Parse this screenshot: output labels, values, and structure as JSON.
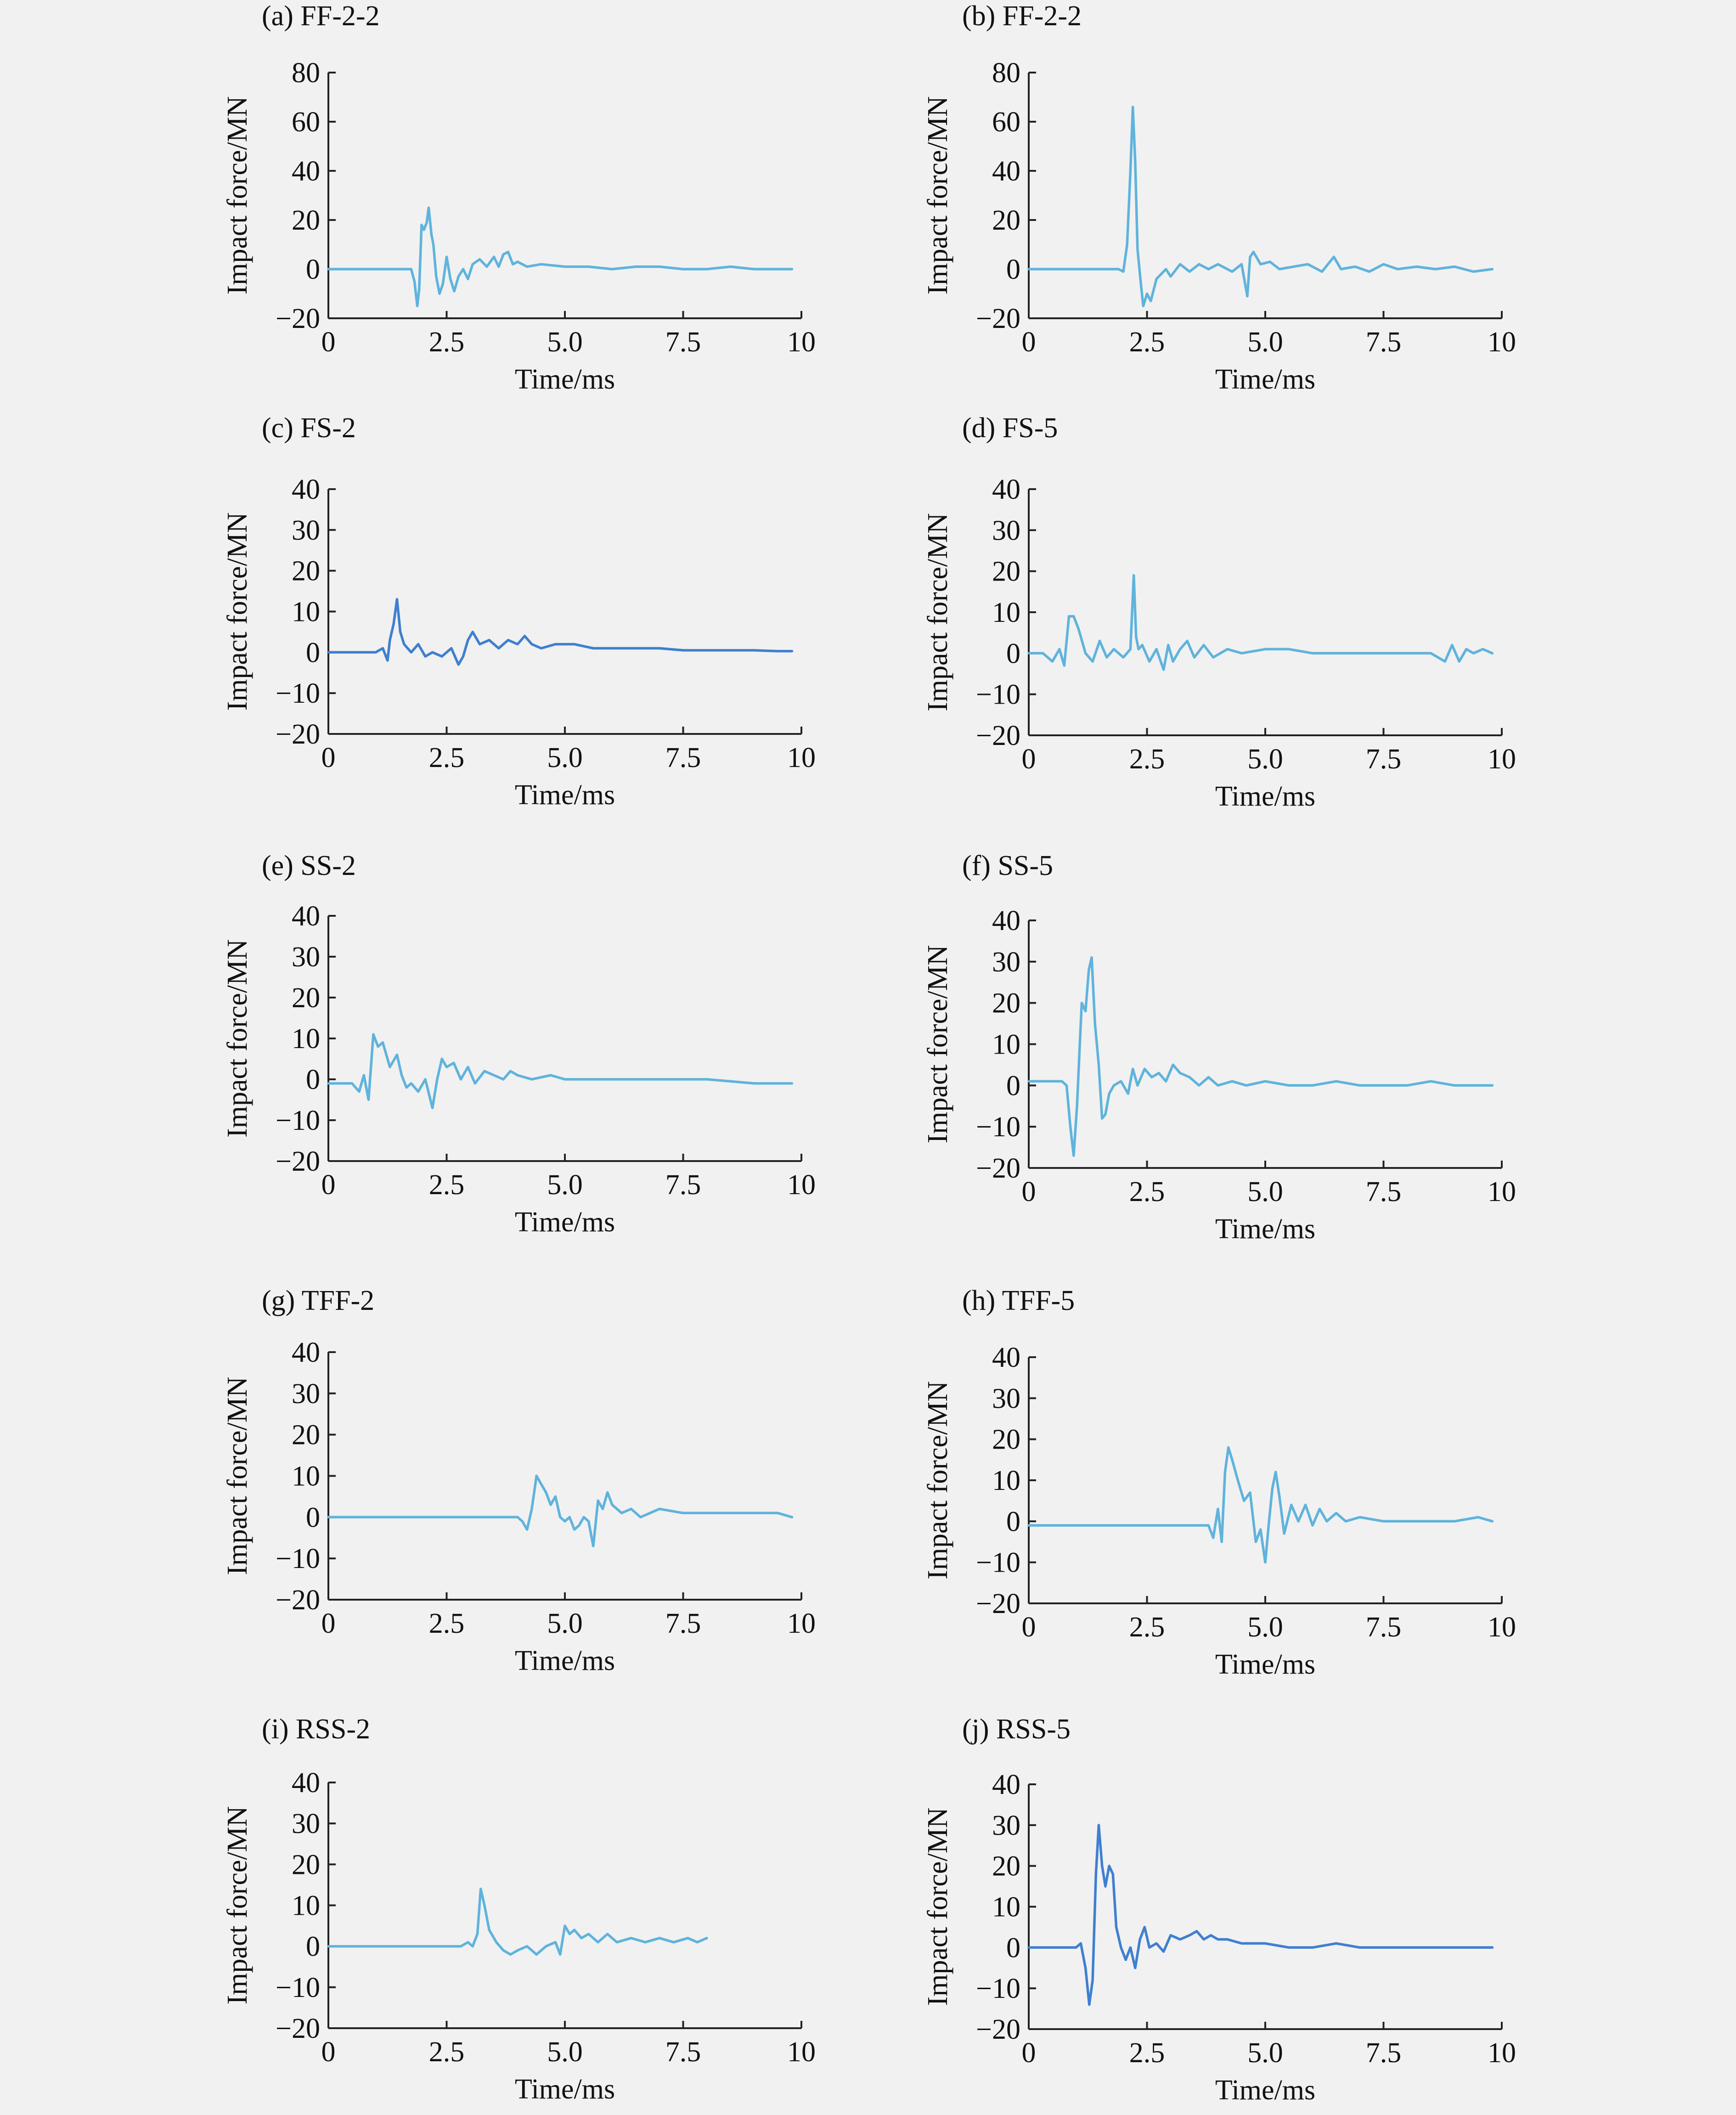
{
  "chart_data": [
    {
      "type": "line",
      "title": "(a) FF-2-2",
      "xlabel": "Time/ms",
      "ylabel": "Impact force/MN",
      "xlim": [
        0,
        10
      ],
      "ylim": [
        -20,
        80
      ],
      "xticks": [
        0,
        2.5,
        5,
        7.5,
        10
      ],
      "xtick_labels": [
        "0",
        "2.5",
        "5.0",
        "7.5",
        "10"
      ],
      "yticks": [
        -20,
        0,
        20,
        40,
        60,
        80
      ],
      "ytick_labels": [
        "−20",
        "0",
        "20",
        "40",
        "60",
        "80"
      ],
      "color": "#5fb3dc",
      "grid": false,
      "x": [
        0,
        1.75,
        1.82,
        1.88,
        1.92,
        1.97,
        2.02,
        2.08,
        2.12,
        2.18,
        2.22,
        2.28,
        2.35,
        2.42,
        2.5,
        2.58,
        2.66,
        2.75,
        2.85,
        2.95,
        3.05,
        3.2,
        3.35,
        3.5,
        3.6,
        3.7,
        3.8,
        3.9,
        4.0,
        4.2,
        4.5,
        5.0,
        5.5,
        6.0,
        6.5,
        7.0,
        7.5,
        8.0,
        8.5,
        9.0,
        9.5,
        9.8
      ],
      "y": [
        0,
        0,
        -5,
        -15,
        -8,
        18,
        16,
        19,
        25,
        14,
        10,
        -3,
        -10,
        -6,
        5,
        -4,
        -9,
        -3,
        0,
        -4,
        2,
        4,
        1,
        5,
        1,
        6,
        7,
        2,
        3,
        1,
        2,
        1,
        1,
        0,
        1,
        1,
        0,
        0,
        1,
        0,
        0,
        0
      ]
    },
    {
      "type": "line",
      "title": "(b) FF-2-2",
      "xlabel": "Time/ms",
      "ylabel": "Impact force/MN",
      "xlim": [
        0,
        10
      ],
      "ylim": [
        -20,
        80
      ],
      "xticks": [
        0,
        2.5,
        5,
        7.5,
        10
      ],
      "xtick_labels": [
        "0",
        "2.5",
        "5.0",
        "7.5",
        "10"
      ],
      "yticks": [
        -20,
        0,
        20,
        40,
        60,
        80
      ],
      "ytick_labels": [
        "−20",
        "0",
        "20",
        "40",
        "60",
        "80"
      ],
      "color": "#5fb3dc",
      "grid": false,
      "x": [
        0,
        1.9,
        2.0,
        2.08,
        2.15,
        2.2,
        2.25,
        2.3,
        2.36,
        2.42,
        2.5,
        2.58,
        2.7,
        2.8,
        2.9,
        3.0,
        3.2,
        3.4,
        3.6,
        3.8,
        4.0,
        4.3,
        4.5,
        4.62,
        4.68,
        4.75,
        4.9,
        5.1,
        5.3,
        5.6,
        5.9,
        6.2,
        6.45,
        6.6,
        6.9,
        7.2,
        7.5,
        7.8,
        8.2,
        8.6,
        9.0,
        9.4,
        9.8
      ],
      "y": [
        0,
        0,
        -1,
        10,
        40,
        66,
        44,
        8,
        -4,
        -15,
        -10,
        -13,
        -4,
        -2,
        0,
        -3,
        2,
        -1,
        2,
        0,
        2,
        -1,
        2,
        -11,
        5,
        7,
        2,
        3,
        0,
        1,
        2,
        -1,
        5,
        0,
        1,
        -1,
        2,
        0,
        1,
        0,
        1,
        -1,
        0
      ]
    },
    {
      "type": "line",
      "title": "(c) FS-2",
      "xlabel": "Time/ms",
      "ylabel": "Impact force/MN",
      "xlim": [
        0,
        10
      ],
      "ylim": [
        -20,
        40
      ],
      "xticks": [
        0,
        2.5,
        5,
        7.5,
        10
      ],
      "xtick_labels": [
        "0",
        "2.5",
        "5.0",
        "7.5",
        "10"
      ],
      "yticks": [
        -20,
        -10,
        0,
        10,
        20,
        30,
        40
      ],
      "ytick_labels": [
        "−20",
        "−10",
        "0",
        "10",
        "20",
        "30",
        "40"
      ],
      "color": "#3f7fd0",
      "grid": false,
      "x": [
        0,
        1.0,
        1.15,
        1.25,
        1.3,
        1.38,
        1.45,
        1.52,
        1.6,
        1.75,
        1.9,
        2.05,
        2.2,
        2.4,
        2.6,
        2.75,
        2.85,
        2.95,
        3.05,
        3.2,
        3.4,
        3.6,
        3.8,
        4.0,
        4.15,
        4.3,
        4.5,
        4.8,
        5.2,
        5.6,
        6.0,
        6.5,
        7.0,
        7.5,
        8.0,
        8.5,
        9.0,
        9.5,
        9.8
      ],
      "y": [
        0,
        0,
        1,
        -2,
        3,
        7,
        13,
        5,
        2,
        0,
        2,
        -1,
        0,
        -1,
        1,
        -3,
        -1,
        3,
        5,
        2,
        3,
        1,
        3,
        2,
        4,
        2,
        1,
        2,
        2,
        1,
        1,
        1,
        1,
        0.5,
        0.5,
        0.5,
        0.5,
        0.3,
        0.3
      ]
    },
    {
      "type": "line",
      "title": "(d) FS-5",
      "xlabel": "Time/ms",
      "ylabel": "Impact force/MN",
      "xlim": [
        0,
        10
      ],
      "ylim": [
        -20,
        40
      ],
      "xticks": [
        0,
        2.5,
        5,
        7.5,
        10
      ],
      "xtick_labels": [
        "0",
        "2.5",
        "5.0",
        "7.5",
        "10"
      ],
      "yticks": [
        -20,
        -10,
        0,
        10,
        20,
        30,
        40
      ],
      "ytick_labels": [
        "−20",
        "−10",
        "0",
        "10",
        "20",
        "30",
        "40"
      ],
      "color": "#5fb3dc",
      "grid": false,
      "x": [
        0,
        0.3,
        0.5,
        0.65,
        0.75,
        0.85,
        0.95,
        1.05,
        1.2,
        1.35,
        1.5,
        1.65,
        1.8,
        2.0,
        2.15,
        2.22,
        2.27,
        2.32,
        2.4,
        2.55,
        2.7,
        2.85,
        2.95,
        3.05,
        3.2,
        3.35,
        3.5,
        3.7,
        3.9,
        4.2,
        4.5,
        5.0,
        5.5,
        6.0,
        6.5,
        7.0,
        7.5,
        8.0,
        8.5,
        8.8,
        8.95,
        9.1,
        9.25,
        9.4,
        9.6,
        9.8
      ],
      "y": [
        0,
        0,
        -2,
        1,
        -3,
        9,
        9,
        6,
        0,
        -2,
        3,
        -1,
        1,
        -1,
        1,
        19,
        4,
        1,
        2,
        -2,
        1,
        -4,
        2,
        -2,
        1,
        3,
        -1,
        2,
        -1,
        1,
        0,
        1,
        1,
        0,
        0,
        0,
        0,
        0,
        0,
        -2,
        2,
        -2,
        1,
        0,
        1,
        0
      ]
    },
    {
      "type": "line",
      "title": "(e) SS-2",
      "xlabel": "Time/ms",
      "ylabel": "Impact force/MN",
      "xlim": [
        0,
        10
      ],
      "ylim": [
        -20,
        40
      ],
      "xticks": [
        0,
        2.5,
        5,
        7.5,
        10
      ],
      "xtick_labels": [
        "0",
        "2.5",
        "5.0",
        "7.5",
        "10"
      ],
      "yticks": [
        -20,
        -10,
        0,
        10,
        20,
        30,
        40
      ],
      "ytick_labels": [
        "−20",
        "−10",
        "0",
        "10",
        "20",
        "30",
        "40"
      ],
      "color": "#5fb3dc",
      "grid": false,
      "x": [
        0,
        0.5,
        0.65,
        0.75,
        0.85,
        0.95,
        1.05,
        1.15,
        1.3,
        1.45,
        1.55,
        1.65,
        1.75,
        1.9,
        2.05,
        2.2,
        2.3,
        2.4,
        2.5,
        2.65,
        2.8,
        2.95,
        3.1,
        3.3,
        3.5,
        3.7,
        3.85,
        4.0,
        4.3,
        4.7,
        5.0,
        5.5,
        6.0,
        6.5,
        7.0,
        7.5,
        8.0,
        8.5,
        9.0,
        9.5,
        9.8
      ],
      "y": [
        -1,
        -1,
        -3,
        1,
        -5,
        11,
        8,
        9,
        3,
        6,
        1,
        -2,
        -1,
        -3,
        0,
        -7,
        0,
        5,
        3,
        4,
        0,
        3,
        -1,
        2,
        1,
        0,
        2,
        1,
        0,
        1,
        0,
        0,
        0,
        0,
        0,
        0,
        0,
        -0.5,
        -1,
        -1,
        -1
      ]
    },
    {
      "type": "line",
      "title": "(f) SS-5",
      "xlabel": "Time/ms",
      "ylabel": "Impact force/MN",
      "xlim": [
        0,
        10
      ],
      "ylim": [
        -20,
        40
      ],
      "xticks": [
        0,
        2.5,
        5,
        7.5,
        10
      ],
      "xtick_labels": [
        "0",
        "2.5",
        "5.0",
        "7.5",
        "10"
      ],
      "yticks": [
        -20,
        -10,
        0,
        10,
        20,
        30,
        40
      ],
      "ytick_labels": [
        "−20",
        "−10",
        "0",
        "10",
        "20",
        "30",
        "40"
      ],
      "color": "#5fb3dc",
      "grid": false,
      "x": [
        0,
        0.7,
        0.8,
        0.88,
        0.95,
        1.02,
        1.08,
        1.12,
        1.2,
        1.27,
        1.33,
        1.4,
        1.48,
        1.55,
        1.62,
        1.7,
        1.8,
        1.95,
        2.1,
        2.2,
        2.3,
        2.45,
        2.6,
        2.75,
        2.9,
        3.05,
        3.2,
        3.4,
        3.6,
        3.8,
        4.0,
        4.3,
        4.6,
        5.0,
        5.5,
        6.0,
        6.5,
        7.0,
        7.5,
        8.0,
        8.5,
        9.0,
        9.5,
        9.8
      ],
      "y": [
        1,
        1,
        0,
        -10,
        -17,
        -5,
        10,
        20,
        18,
        28,
        31,
        15,
        5,
        -8,
        -7,
        -2,
        0,
        1,
        -2,
        4,
        0,
        4,
        2,
        3,
        1,
        5,
        3,
        2,
        0,
        2,
        0,
        1,
        0,
        1,
        0,
        0,
        1,
        0,
        0,
        0,
        1,
        0,
        0,
        0
      ]
    },
    {
      "type": "line",
      "title": "(g) TFF-2",
      "xlabel": "Time/ms",
      "ylabel": "Impact force/MN",
      "xlim": [
        0,
        10
      ],
      "ylim": [
        -20,
        40
      ],
      "xticks": [
        0,
        2.5,
        5,
        7.5,
        10
      ],
      "xtick_labels": [
        "0",
        "2.5",
        "5.0",
        "7.5",
        "10"
      ],
      "yticks": [
        -20,
        -10,
        0,
        10,
        20,
        30,
        40
      ],
      "ytick_labels": [
        "−20",
        "−10",
        "0",
        "10",
        "20",
        "30",
        "40"
      ],
      "color": "#5fb3dc",
      "grid": false,
      "x": [
        0,
        4.0,
        4.1,
        4.2,
        4.3,
        4.4,
        4.5,
        4.6,
        4.7,
        4.8,
        4.9,
        5.0,
        5.1,
        5.2,
        5.3,
        5.4,
        5.5,
        5.6,
        5.7,
        5.8,
        5.9,
        6.0,
        6.2,
        6.4,
        6.6,
        6.8,
        7.0,
        7.5,
        8.0,
        8.5,
        9.0,
        9.5,
        9.8
      ],
      "y": [
        0,
        0,
        -1,
        -3,
        2,
        10,
        8,
        6,
        3,
        5,
        0,
        -1,
        0,
        -3,
        -2,
        0,
        -1,
        -7,
        4,
        2,
        6,
        3,
        1,
        2,
        0,
        1,
        2,
        1,
        1,
        1,
        1,
        1,
        0
      ]
    },
    {
      "type": "line",
      "title": "(h) TFF-5",
      "xlabel": "Time/ms",
      "ylabel": "Impact force/MN",
      "xlim": [
        0,
        10
      ],
      "ylim": [
        -20,
        40
      ],
      "xticks": [
        0,
        2.5,
        5,
        7.5,
        10
      ],
      "xtick_labels": [
        "0",
        "2.5",
        "5.0",
        "7.5",
        "10"
      ],
      "yticks": [
        -20,
        -10,
        0,
        10,
        20,
        30,
        40
      ],
      "ytick_labels": [
        "−20",
        "−10",
        "0",
        "10",
        "20",
        "30",
        "40"
      ],
      "color": "#5fb3dc",
      "grid": false,
      "x": [
        0,
        3.8,
        3.9,
        4.0,
        4.08,
        4.15,
        4.22,
        4.3,
        4.42,
        4.55,
        4.68,
        4.8,
        4.9,
        5.0,
        5.08,
        5.15,
        5.22,
        5.3,
        5.4,
        5.55,
        5.7,
        5.85,
        6.0,
        6.15,
        6.3,
        6.5,
        6.7,
        7.0,
        7.5,
        8.0,
        8.5,
        9.0,
        9.5,
        9.8
      ],
      "y": [
        -1,
        -1,
        -4,
        3,
        -5,
        12,
        18,
        15,
        10,
        5,
        7,
        -5,
        -2,
        -10,
        0,
        8,
        12,
        6,
        -3,
        4,
        0,
        4,
        -1,
        3,
        0,
        2,
        0,
        1,
        0,
        0,
        0,
        0,
        1,
        0
      ]
    },
    {
      "type": "line",
      "title": "(i) RSS-2",
      "xlabel": "Time/ms",
      "ylabel": "Impact force/MN",
      "xlim": [
        0,
        10
      ],
      "ylim": [
        -20,
        40
      ],
      "xticks": [
        0,
        2.5,
        5,
        7.5,
        10
      ],
      "xtick_labels": [
        "0",
        "2.5",
        "5.0",
        "7.5",
        "10"
      ],
      "yticks": [
        -20,
        -10,
        0,
        10,
        20,
        30,
        40
      ],
      "ytick_labels": [
        "−20",
        "−10",
        "0",
        "10",
        "20",
        "30",
        "40"
      ],
      "color": "#5fb3dc",
      "grid": false,
      "x": [
        0,
        2.8,
        2.95,
        3.05,
        3.15,
        3.22,
        3.3,
        3.4,
        3.55,
        3.7,
        3.85,
        4.0,
        4.2,
        4.4,
        4.6,
        4.8,
        4.9,
        5.0,
        5.1,
        5.2,
        5.35,
        5.5,
        5.7,
        5.9,
        6.1,
        6.4,
        6.7,
        7.0,
        7.3,
        7.6,
        7.8,
        8.0
      ],
      "y": [
        0,
        0,
        1,
        0,
        3,
        14,
        10,
        4,
        1,
        -1,
        -2,
        -1,
        0,
        -2,
        0,
        1,
        -2,
        5,
        3,
        4,
        2,
        3,
        1,
        3,
        1,
        2,
        1,
        2,
        1,
        2,
        1,
        2
      ]
    },
    {
      "type": "line",
      "title": "(j) RSS-5",
      "xlabel": "Time/ms",
      "ylabel": "Impact force/MN",
      "xlim": [
        0,
        10
      ],
      "ylim": [
        -20,
        40
      ],
      "xticks": [
        0,
        2.5,
        5,
        7.5,
        10
      ],
      "xtick_labels": [
        "0",
        "2.5",
        "5.0",
        "7.5",
        "10"
      ],
      "yticks": [
        -20,
        -10,
        0,
        10,
        20,
        30,
        40
      ],
      "ytick_labels": [
        "−20",
        "−10",
        "0",
        "10",
        "20",
        "30",
        "40"
      ],
      "color": "#3f7fd0",
      "grid": false,
      "x": [
        0,
        1.0,
        1.1,
        1.2,
        1.28,
        1.35,
        1.42,
        1.48,
        1.55,
        1.62,
        1.7,
        1.78,
        1.85,
        1.95,
        2.05,
        2.15,
        2.25,
        2.35,
        2.45,
        2.55,
        2.7,
        2.85,
        3.0,
        3.2,
        3.4,
        3.55,
        3.7,
        3.85,
        4.0,
        4.2,
        4.5,
        5.0,
        5.5,
        6.0,
        6.5,
        7.0,
        7.5,
        8.0,
        8.5,
        9.0,
        9.5,
        9.8
      ],
      "y": [
        0,
        0,
        1,
        -5,
        -14,
        -8,
        18,
        30,
        20,
        15,
        20,
        18,
        5,
        0,
        -3,
        0,
        -5,
        2,
        5,
        0,
        1,
        -1,
        3,
        2,
        3,
        4,
        2,
        3,
        2,
        2,
        1,
        1,
        0,
        0,
        1,
        0,
        0,
        0,
        0,
        0,
        0,
        0
      ]
    }
  ]
}
